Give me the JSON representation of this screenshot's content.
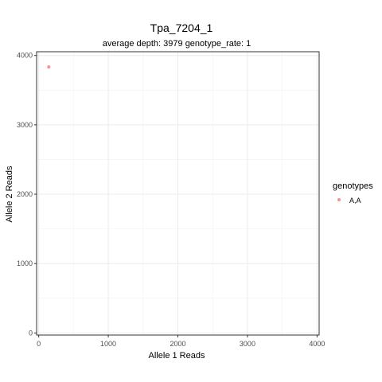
{
  "chart_data": {
    "type": "scatter",
    "title": "Tpa_7204_1",
    "subtitle": "average depth:  3979  genotype_rate:  1",
    "xlabel": "Allele 1 Reads",
    "ylabel": "Allele 2 Reads",
    "xlim": [
      0,
      4000
    ],
    "ylim": [
      0,
      4000
    ],
    "xticks": [
      0,
      1000,
      2000,
      3000,
      4000
    ],
    "yticks": [
      0,
      1000,
      2000,
      3000,
      4000
    ],
    "grid": true,
    "legend_position": "right",
    "legend_title": "genotypes",
    "series": [
      {
        "name": "A,A",
        "color": "#f8766d",
        "points": [
          {
            "x": 145,
            "y": 3834
          }
        ]
      }
    ]
  }
}
